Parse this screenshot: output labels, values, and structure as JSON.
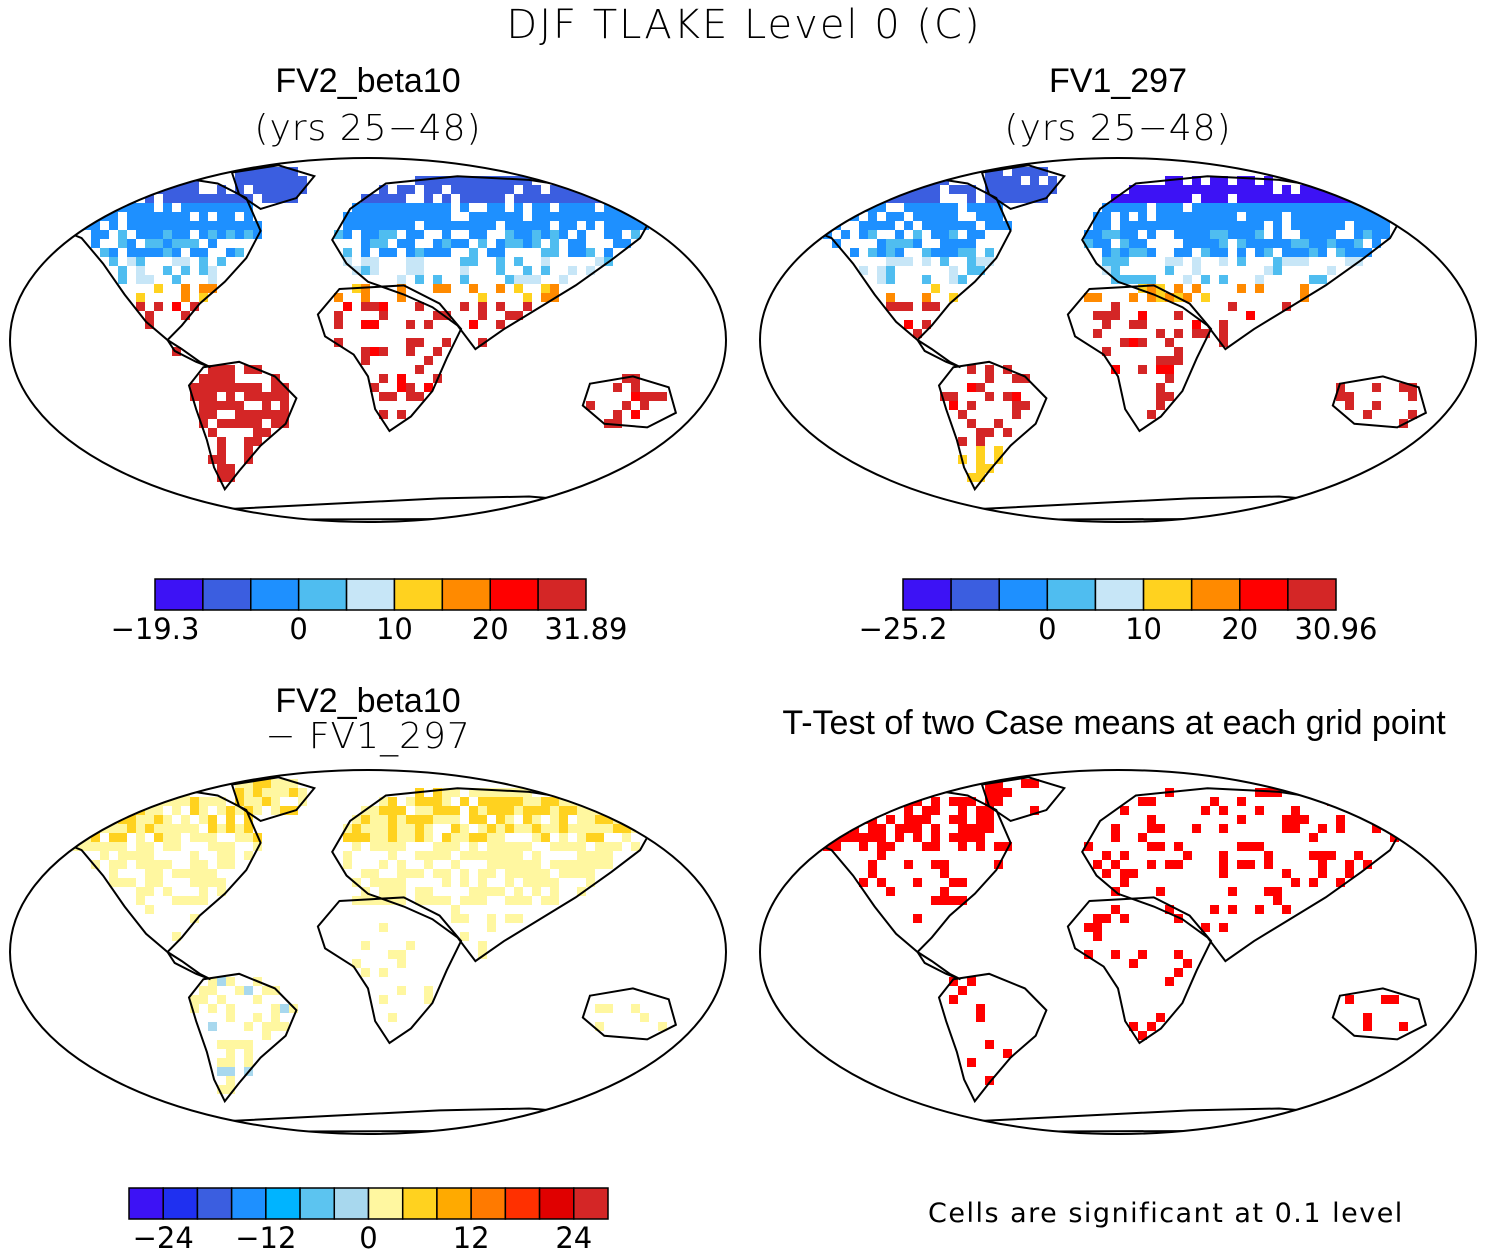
{
  "title": "DJF TLAKE Level 0 (C)",
  "panels": [
    {
      "id": "p1",
      "title": "FV2_beta10",
      "subtitle": "(yrs 25−48)",
      "type": "field"
    },
    {
      "id": "p2",
      "title": "FV1_297",
      "subtitle": "(yrs 25−48)",
      "type": "field"
    },
    {
      "id": "p3",
      "title": "FV2_beta10",
      "subtitle": "− FV1_297",
      "type": "difference"
    },
    {
      "id": "p4",
      "title": "T-Test of two Case means at each grid point",
      "subtitle": "",
      "type": "ttest"
    }
  ],
  "colorbars": [
    {
      "id": "cb1",
      "colors": [
        "#3d12f5",
        "#3b5ee0",
        "#1e90ff",
        "#4fbdf0",
        "#c7e6f7",
        "#ffd21f",
        "#ff8a00",
        "#ff0000",
        "#d42626"
      ],
      "labels": [
        "−19.3",
        "0",
        "10",
        "20",
        "31.89"
      ],
      "label_boundaries": [
        0,
        3,
        5,
        7,
        9
      ]
    },
    {
      "id": "cb2",
      "colors": [
        "#3d12f5",
        "#3b5ee0",
        "#1e90ff",
        "#4fbdf0",
        "#c7e6f7",
        "#ffd21f",
        "#ff8a00",
        "#ff0000",
        "#d42626"
      ],
      "labels": [
        "−25.2",
        "0",
        "10",
        "20",
        "30.96"
      ],
      "label_boundaries": [
        0,
        3,
        5,
        7,
        9
      ]
    },
    {
      "id": "cb3",
      "colors": [
        "#3d12f5",
        "#1f30f0",
        "#3b5ee0",
        "#1e90ff",
        "#00b4ff",
        "#5cc4f0",
        "#a8d8ee",
        "#fff7a0",
        "#ffd21f",
        "#ffaa00",
        "#ff7a00",
        "#ff3000",
        "#e00000",
        "#d42626"
      ],
      "labels": [
        "−24",
        "−12",
        "0",
        "12",
        "24"
      ],
      "label_boundaries": [
        1,
        4,
        7,
        10,
        13
      ]
    }
  ],
  "footnote": "Cells are significant at 0.1 level",
  "colors": {
    "land_outline": "#000000",
    "ttest_significant": "#ff0000",
    "background": "#ffffff"
  }
}
